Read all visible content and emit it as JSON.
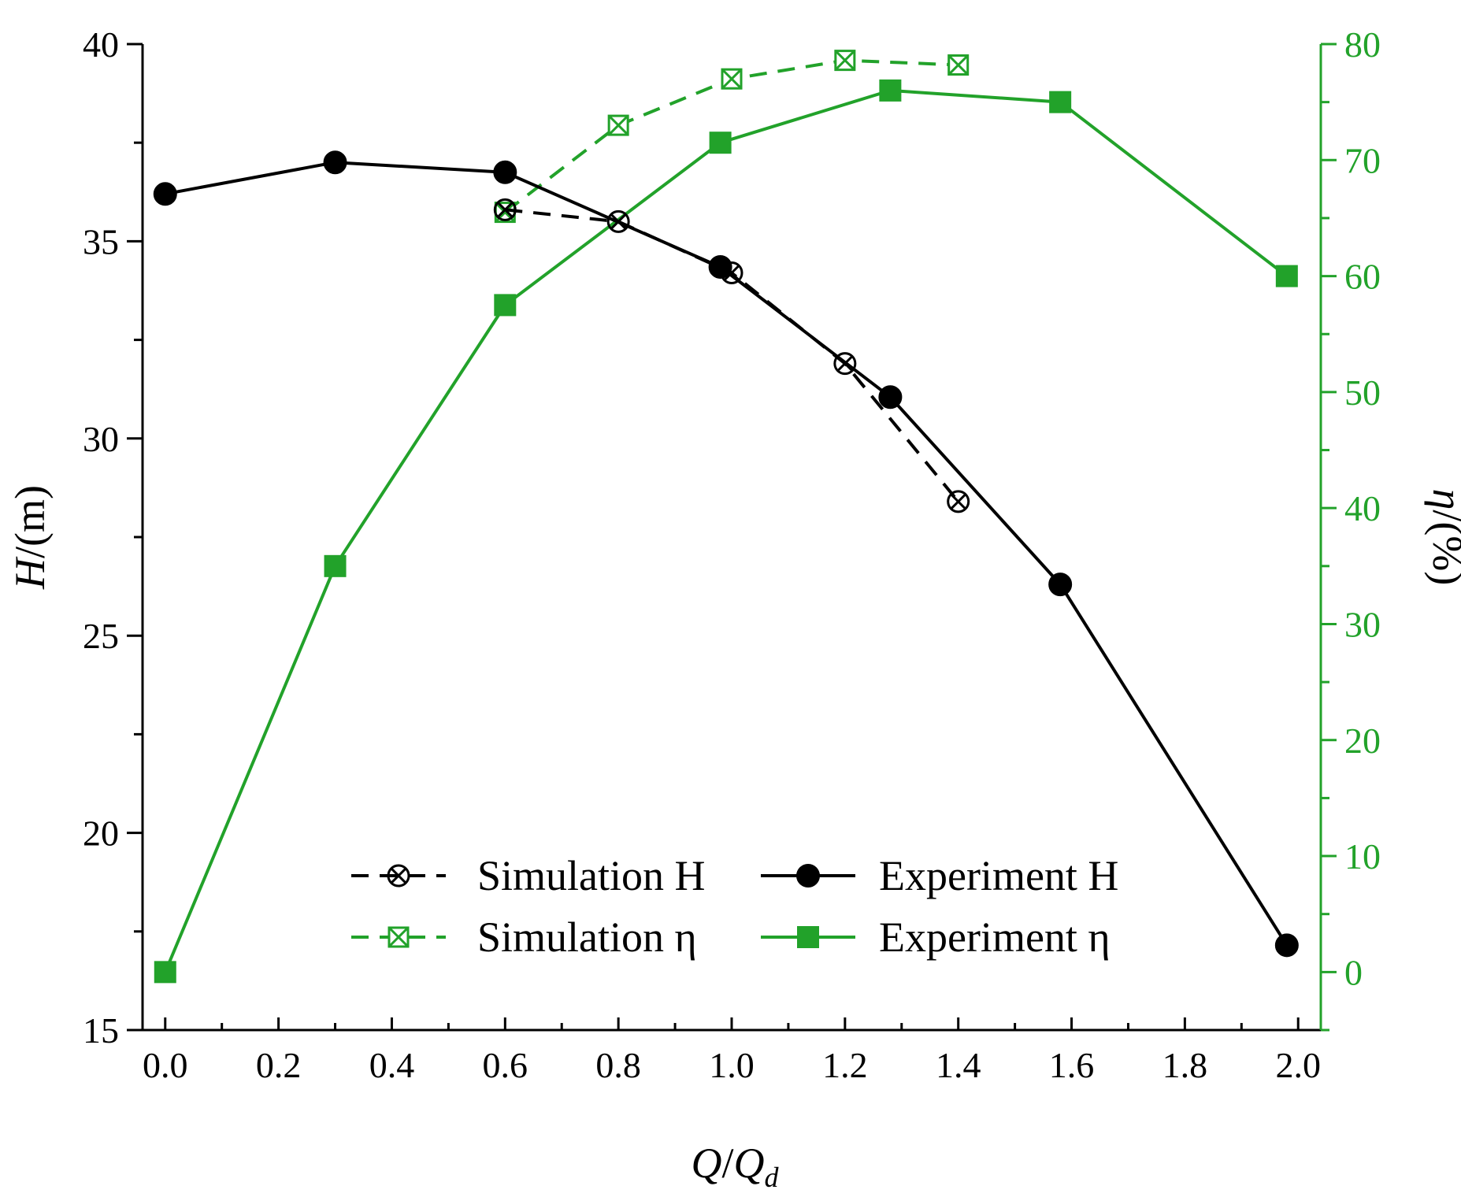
{
  "chart_data": {
    "type": "line",
    "xlabel": {
      "main": "Q",
      "slash": "/",
      "sub_base": "Q",
      "sub": "d"
    },
    "ylabel_left": {
      "var": "H",
      "unit": "/(m)"
    },
    "ylabel_right": {
      "var": "η",
      "unit": "/(%)"
    },
    "xlim": [
      -0.04,
      2.04
    ],
    "ylim_left": [
      15,
      40
    ],
    "ylim_right": [
      -5,
      80
    ],
    "x_ticks": [
      "0.0",
      "0.2",
      "0.4",
      "0.6",
      "0.8",
      "1.0",
      "1.2",
      "1.4",
      "1.6",
      "1.8",
      "2.0"
    ],
    "y_left_ticks": [
      "15",
      "20",
      "25",
      "30",
      "35",
      "40"
    ],
    "y_right_ticks": [
      "0",
      "10",
      "20",
      "30",
      "40",
      "50",
      "60",
      "70",
      "80"
    ],
    "colors": {
      "black": "#000000",
      "green": "#22a22a"
    },
    "series": [
      {
        "name": "Simulation H",
        "axis": "left",
        "color": "#000000",
        "dash": true,
        "marker": "circle-x",
        "x": [
          0.6,
          0.8,
          1.0,
          1.2,
          1.4
        ],
        "y": [
          35.8,
          35.5,
          34.2,
          31.9,
          28.4
        ]
      },
      {
        "name": "Experiment H",
        "axis": "left",
        "color": "#000000",
        "dash": false,
        "marker": "filled-circle",
        "x": [
          0.0,
          0.3,
          0.6,
          0.98,
          1.28,
          1.58,
          1.98
        ],
        "y": [
          36.2,
          37.0,
          36.75,
          34.35,
          31.05,
          26.3,
          17.15
        ]
      },
      {
        "name": "Simulation η",
        "axis": "right",
        "color": "#22a22a",
        "dash": true,
        "marker": "square-x",
        "x": [
          0.6,
          0.8,
          1.0,
          1.2,
          1.4
        ],
        "y": [
          65.5,
          73,
          77,
          78.6,
          78.2
        ]
      },
      {
        "name": "Experiment η",
        "axis": "right",
        "color": "#22a22a",
        "dash": false,
        "marker": "filled-square",
        "x": [
          0.0,
          0.3,
          0.6,
          0.98,
          1.28,
          1.58,
          1.98
        ],
        "y": [
          0,
          35,
          57.5,
          71.5,
          76,
          75,
          60
        ]
      }
    ],
    "legend": {
      "position": "bottom-center",
      "columns": 2
    }
  }
}
